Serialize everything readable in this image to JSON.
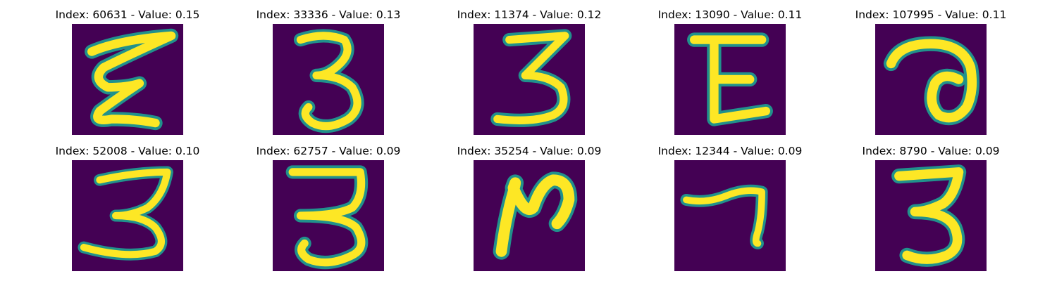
{
  "figure": {
    "background": "#ffffff",
    "panel_colormap": "viridis",
    "panel_background_color": "#440154",
    "stroke_color": "#fde725",
    "edge_color": "#21918c"
  },
  "panels": [
    {
      "title": "Index: 60631 - Value: 0.15",
      "glyph": "ε"
    },
    {
      "title": "Index: 33336 - Value: 0.13",
      "glyph": "3"
    },
    {
      "title": "Index: 11374 - Value: 0.12",
      "glyph": "3"
    },
    {
      "title": "Index: 13090 - Value: 0.11",
      "glyph": "E"
    },
    {
      "title": "Index: 107995 - Value: 0.11",
      "glyph": "a"
    },
    {
      "title": "Index: 52008 - Value: 0.10",
      "glyph": "3"
    },
    {
      "title": "Index: 62757 - Value: 0.09",
      "glyph": "3"
    },
    {
      "title": "Index: 35254 - Value: 0.09",
      "glyph": "N"
    },
    {
      "title": "Index: 12344 - Value: 0.09",
      "glyph": "7"
    },
    {
      "title": "Index: 8790 - Value: 0.09",
      "glyph": "3"
    }
  ]
}
